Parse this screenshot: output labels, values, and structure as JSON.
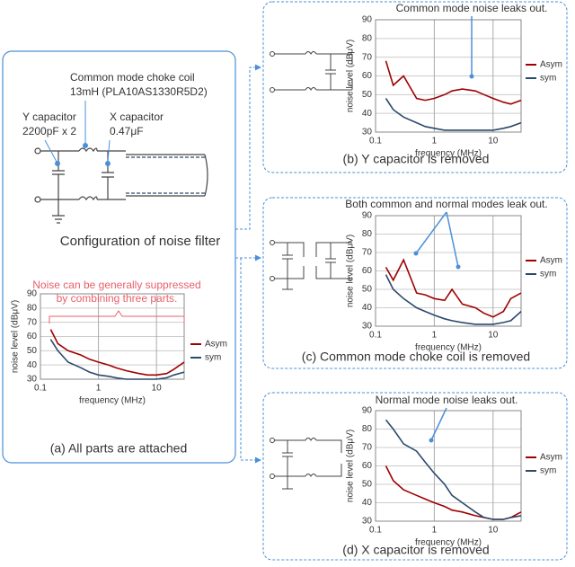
{
  "diagram": {
    "choke_label": "Common mode choke coil",
    "choke_part": "13mH (PLA10AS1330R5D2)",
    "y_cap_label": "Y capacitor",
    "y_cap_value": "2200pF x 2",
    "x_cap_label": "X capacitor",
    "x_cap_value": "0.47μF",
    "caption": "Configuration of noise filter"
  },
  "chart_data": [
    {
      "type": "line",
      "title": "(a) All parts are attached",
      "annotation": [
        "Noise can be generally suppressed",
        "by combining three parts."
      ],
      "xlabel": "frequency (MHz)",
      "ylabel": "noise level (dBμV)",
      "xlog": true,
      "xlim": [
        0.1,
        30
      ],
      "xticks": [
        0.1,
        1,
        10
      ],
      "ylim": [
        30,
        90
      ],
      "yticks": [
        30,
        40,
        50,
        60,
        70,
        80,
        90
      ],
      "grid": true,
      "x": [
        0.15,
        0.2,
        0.3,
        0.5,
        0.7,
        1,
        1.5,
        2,
        3,
        5,
        7,
        10,
        15,
        20,
        30
      ],
      "series": [
        {
          "name": "Asym",
          "color": "#a00000",
          "values": [
            65,
            55,
            50,
            47,
            44,
            42,
            40,
            38,
            36,
            34,
            33,
            33,
            34,
            37,
            42
          ]
        },
        {
          "name": "sym",
          "color": "#2b4a6b",
          "values": [
            58,
            50,
            42,
            38,
            35,
            33,
            32,
            31,
            30,
            30,
            30,
            30,
            31,
            33,
            35
          ]
        }
      ]
    },
    {
      "type": "line",
      "title": "(b) Y capacitor is removed",
      "annotation": "Common mode noise leaks out.",
      "xlabel": "frequency (MHz)",
      "ylabel": "noise level (dBμV)",
      "xlog": true,
      "xlim": [
        0.1,
        30
      ],
      "xticks": [
        0.1,
        1,
        10
      ],
      "ylim": [
        30,
        90
      ],
      "yticks": [
        30,
        40,
        50,
        60,
        70,
        80,
        90
      ],
      "grid": true,
      "x": [
        0.15,
        0.2,
        0.3,
        0.5,
        0.7,
        1,
        1.5,
        2,
        3,
        5,
        7,
        10,
        15,
        20,
        30
      ],
      "series": [
        {
          "name": "Asym",
          "color": "#a00000",
          "values": [
            68,
            55,
            60,
            48,
            47,
            48,
            50,
            52,
            53,
            52,
            50,
            48,
            46,
            45,
            47
          ]
        },
        {
          "name": "sym",
          "color": "#2b4a6b",
          "values": [
            48,
            42,
            38,
            35,
            33,
            32,
            31,
            31,
            31,
            31,
            31,
            31,
            32,
            33,
            35
          ]
        }
      ]
    },
    {
      "type": "line",
      "title": "(c) Common mode choke coil is removed",
      "annotation": "Both common and normal modes leak out.",
      "xlabel": "frequency (MHz)",
      "ylabel": "noise level (dBμV)",
      "xlog": true,
      "xlim": [
        0.1,
        30
      ],
      "xticks": [
        0.1,
        1,
        10
      ],
      "ylim": [
        30,
        90
      ],
      "yticks": [
        30,
        40,
        50,
        60,
        70,
        80,
        90
      ],
      "grid": true,
      "x": [
        0.15,
        0.2,
        0.3,
        0.5,
        0.7,
        1,
        1.5,
        2,
        3,
        5,
        7,
        10,
        15,
        20,
        30
      ],
      "series": [
        {
          "name": "Asym",
          "color": "#a00000",
          "values": [
            62,
            55,
            66,
            48,
            47,
            45,
            44,
            50,
            42,
            40,
            37,
            35,
            38,
            45,
            48
          ]
        },
        {
          "name": "sym",
          "color": "#2b4a6b",
          "values": [
            58,
            50,
            45,
            40,
            38,
            36,
            34,
            33,
            32,
            31,
            31,
            31,
            32,
            33,
            38
          ]
        }
      ]
    },
    {
      "type": "line",
      "title": "(d) X capacitor is removed",
      "annotation": "Normal mode noise leaks out.",
      "xlabel": "frequency (MHz)",
      "ylabel": "noise level (dBμV)",
      "xlog": true,
      "xlim": [
        0.1,
        30
      ],
      "xticks": [
        0.1,
        1,
        10
      ],
      "ylim": [
        30,
        90
      ],
      "yticks": [
        30,
        40,
        50,
        60,
        70,
        80,
        90
      ],
      "grid": true,
      "x": [
        0.15,
        0.2,
        0.3,
        0.5,
        0.7,
        1,
        1.5,
        2,
        3,
        5,
        7,
        10,
        15,
        20,
        30
      ],
      "series": [
        {
          "name": "Asym",
          "color": "#a00000",
          "values": [
            60,
            52,
            47,
            44,
            42,
            40,
            38,
            36,
            35,
            33,
            32,
            31,
            31,
            32,
            35
          ]
        },
        {
          "name": "sym",
          "color": "#2b4a6b",
          "values": [
            85,
            80,
            72,
            68,
            62,
            56,
            50,
            44,
            40,
            35,
            32,
            31,
            31,
            32,
            33
          ]
        }
      ]
    }
  ]
}
